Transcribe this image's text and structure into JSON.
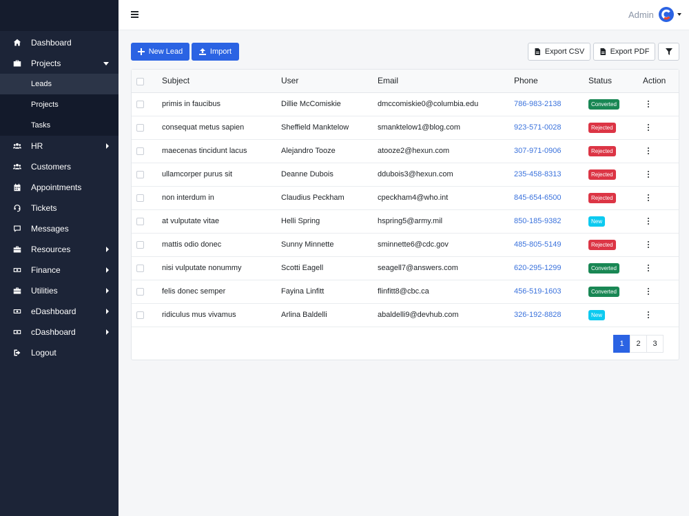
{
  "sidebar": {
    "items": [
      {
        "label": "Dashboard",
        "icon": "home-icon"
      },
      {
        "label": "Projects",
        "icon": "briefcase-icon",
        "expanded": true,
        "children": [
          "Leads",
          "Projects",
          "Tasks"
        ],
        "active_child": "Leads"
      },
      {
        "label": "HR",
        "icon": "users-icon",
        "has_submenu": true
      },
      {
        "label": "Customers",
        "icon": "users-icon"
      },
      {
        "label": "Appointments",
        "icon": "calendar-icon"
      },
      {
        "label": "Tickets",
        "icon": "headset-icon"
      },
      {
        "label": "Messages",
        "icon": "message-icon"
      },
      {
        "label": "Resources",
        "icon": "toolbox-icon",
        "has_submenu": true
      },
      {
        "label": "Finance",
        "icon": "money-icon",
        "has_submenu": true
      },
      {
        "label": "Utilities",
        "icon": "toolbox-icon",
        "has_submenu": true
      },
      {
        "label": "eDashboard",
        "icon": "money-icon",
        "has_submenu": true
      },
      {
        "label": "cDashboard",
        "icon": "money-icon",
        "has_submenu": true
      },
      {
        "label": "Logout",
        "icon": "logout-icon"
      }
    ]
  },
  "topbar": {
    "user_label": "Admin"
  },
  "toolbar": {
    "new_lead": "New Lead",
    "import": "Import",
    "export_csv": "Export CSV",
    "export_pdf": "Export PDF"
  },
  "table": {
    "headers": [
      "Subject",
      "User",
      "Email",
      "Phone",
      "Status",
      "Action"
    ],
    "rows": [
      {
        "subject": "primis in faucibus",
        "user": "Dillie McComiskie",
        "email": "dmccomiskie0@columbia.edu",
        "phone": "786-983-2138",
        "status": "Converted"
      },
      {
        "subject": "consequat metus sapien",
        "user": "Sheffield Manktelow",
        "email": "smanktelow1@blog.com",
        "phone": "923-571-0028",
        "status": "Rejected"
      },
      {
        "subject": "maecenas tincidunt lacus",
        "user": "Alejandro Tooze",
        "email": "atooze2@hexun.com",
        "phone": "307-971-0906",
        "status": "Rejected"
      },
      {
        "subject": "ullamcorper purus sit",
        "user": "Deanne Dubois",
        "email": "ddubois3@hexun.com",
        "phone": "235-458-8313",
        "status": "Rejected"
      },
      {
        "subject": "non interdum in",
        "user": "Claudius Peckham",
        "email": "cpeckham4@who.int",
        "phone": "845-654-6500",
        "status": "Rejected"
      },
      {
        "subject": "at vulputate vitae",
        "user": "Helli Spring",
        "email": "hspring5@army.mil",
        "phone": "850-185-9382",
        "status": "New"
      },
      {
        "subject": "mattis odio donec",
        "user": "Sunny Minnette",
        "email": "sminnette6@cdc.gov",
        "phone": "485-805-5149",
        "status": "Rejected"
      },
      {
        "subject": "nisi vulputate nonummy",
        "user": "Scotti Eagell",
        "email": "seagell7@answers.com",
        "phone": "620-295-1299",
        "status": "Converted"
      },
      {
        "subject": "felis donec semper",
        "user": "Fayina Linfitt",
        "email": "flinfitt8@cbc.ca",
        "phone": "456-519-1603",
        "status": "Converted"
      },
      {
        "subject": "ridiculus mus vivamus",
        "user": "Arlina Baldelli",
        "email": "abaldelli9@devhub.com",
        "phone": "326-192-8828",
        "status": "New"
      }
    ]
  },
  "pagination": {
    "pages": [
      "1",
      "2",
      "3"
    ],
    "current": "1"
  },
  "colors": {
    "sidebar_bg": "#1c2437",
    "primary": "#2b63e3",
    "converted": "#198754",
    "rejected": "#dc3545",
    "new": "#0dcaf0"
  }
}
